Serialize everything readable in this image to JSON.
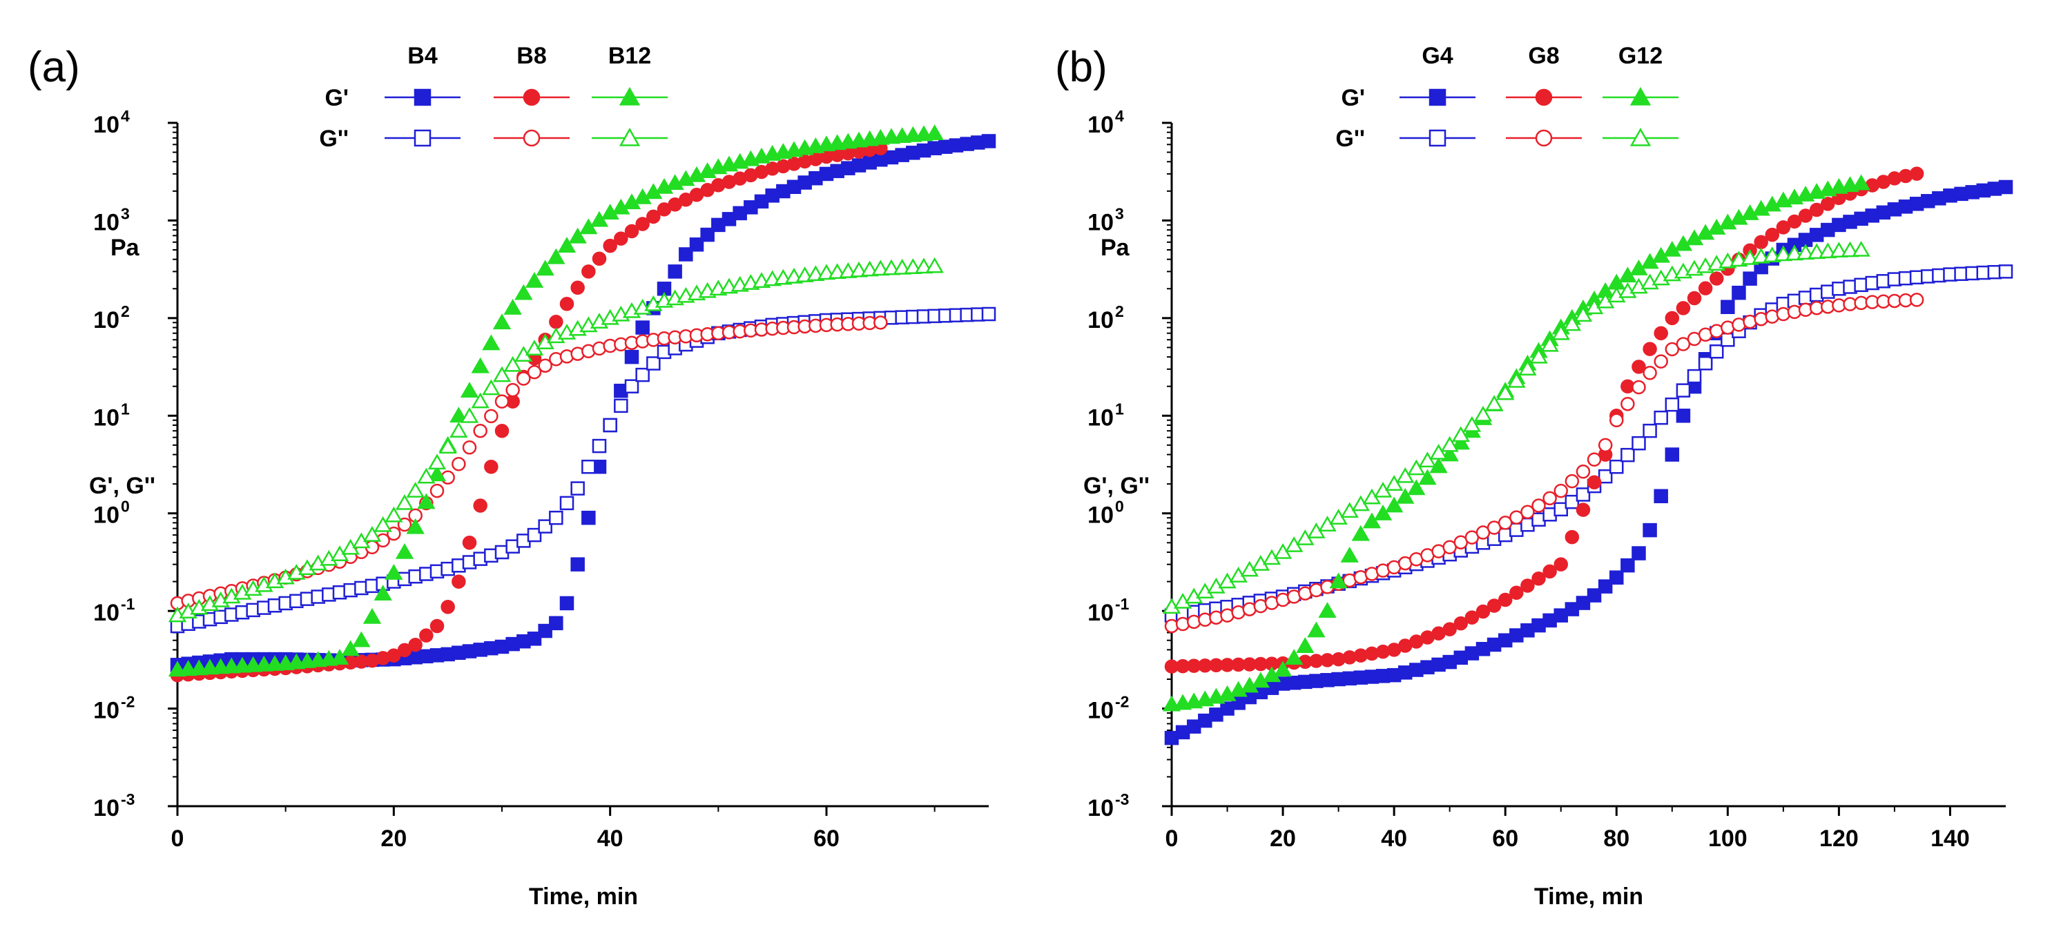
{
  "chart_data": [
    {
      "panel_label": "(a)",
      "type": "scatter",
      "xlabel": "Time, min",
      "ylabel": "G', G''",
      "yunit": "Pa",
      "xlim": [
        0,
        75
      ],
      "xticks": [
        "0",
        "20",
        "40",
        "60"
      ],
      "ylim": [
        0.001,
        10000
      ],
      "yscale": "log",
      "yticks": [
        {
          "base": "10",
          "exp": "-3"
        },
        {
          "base": "10",
          "exp": "-2"
        },
        {
          "base": "10",
          "exp": "-1"
        },
        {
          "base": "10",
          "exp": "0"
        },
        {
          "base": "10",
          "exp": "1"
        },
        {
          "base": "10",
          "exp": "2"
        },
        {
          "base": "10",
          "exp": "3"
        },
        {
          "base": "10",
          "exp": "4"
        }
      ],
      "legend": {
        "placement": "top",
        "columns": [
          "B4",
          "B8",
          "B12"
        ],
        "rows": [
          "G'",
          "G''"
        ]
      },
      "series": [
        {
          "name": "B4 G'",
          "color": "#1f1fd6",
          "marker": "square",
          "filled": true,
          "x": [
            0,
            5,
            10,
            15,
            20,
            25,
            30,
            33,
            35,
            36,
            37,
            38,
            39,
            40,
            41,
            42,
            43,
            45,
            47,
            50,
            55,
            60,
            65,
            70,
            75
          ],
          "y": [
            0.028,
            0.032,
            0.032,
            0.031,
            0.032,
            0.036,
            0.043,
            0.052,
            0.075,
            0.12,
            0.3,
            0.9,
            3,
            8,
            18,
            40,
            80,
            200,
            450,
            900,
            1800,
            3000,
            4200,
            5500,
            6500
          ]
        },
        {
          "name": "B4 G''",
          "color": "#1f1fd6",
          "marker": "square",
          "filled": false,
          "x": [
            0,
            10,
            20,
            25,
            30,
            33,
            35,
            37,
            38,
            40,
            42,
            45,
            50,
            55,
            60,
            65,
            70,
            75
          ],
          "y": [
            0.07,
            0.12,
            0.2,
            0.27,
            0.4,
            0.6,
            0.9,
            1.8,
            3,
            8,
            20,
            45,
            70,
            85,
            95,
            100,
            105,
            110
          ]
        },
        {
          "name": "B8 G'",
          "color": "#e8202a",
          "marker": "circle",
          "filled": true,
          "x": [
            0,
            5,
            10,
            15,
            18,
            20,
            22,
            24,
            25,
            26,
            27,
            28,
            29,
            30,
            31,
            32,
            34,
            36,
            38,
            40,
            45,
            50,
            55,
            60,
            65
          ],
          "y": [
            0.022,
            0.024,
            0.026,
            0.029,
            0.031,
            0.035,
            0.045,
            0.07,
            0.11,
            0.2,
            0.5,
            1.2,
            3,
            7,
            14,
            25,
            60,
            140,
            300,
            550,
            1300,
            2300,
            3400,
            4500,
            5500
          ]
        },
        {
          "name": "B8 G''",
          "color": "#e8202a",
          "marker": "circle",
          "filled": false,
          "x": [
            0,
            5,
            10,
            15,
            18,
            20,
            22,
            24,
            26,
            28,
            30,
            32,
            35,
            40,
            45,
            50,
            55,
            60,
            65
          ],
          "y": [
            0.12,
            0.16,
            0.22,
            0.32,
            0.45,
            0.62,
            0.95,
            1.7,
            3.2,
            7,
            14,
            24,
            38,
            52,
            62,
            70,
            78,
            85,
            90
          ]
        },
        {
          "name": "B12 G'",
          "color": "#22dd22",
          "marker": "triangle",
          "filled": true,
          "x": [
            0,
            5,
            10,
            15,
            17,
            19,
            21,
            23,
            24,
            25,
            26,
            27,
            28,
            29,
            30,
            32,
            34,
            36,
            38,
            40,
            45,
            50,
            55,
            60,
            65,
            70
          ],
          "y": [
            0.025,
            0.027,
            0.029,
            0.033,
            0.05,
            0.15,
            0.4,
            1.3,
            2.5,
            5,
            10,
            18,
            32,
            55,
            90,
            180,
            320,
            550,
            850,
            1200,
            2200,
            3500,
            4800,
            6000,
            7000,
            7800
          ]
        },
        {
          "name": "B12 G''",
          "color": "#22dd22",
          "marker": "triangle",
          "filled": false,
          "x": [
            0,
            5,
            10,
            15,
            18,
            20,
            22,
            24,
            26,
            28,
            30,
            32,
            35,
            40,
            45,
            50,
            55,
            60,
            65,
            70
          ],
          "y": [
            0.09,
            0.14,
            0.22,
            0.38,
            0.6,
            0.95,
            1.7,
            3.3,
            7,
            14,
            26,
            42,
            65,
            100,
            150,
            200,
            250,
            290,
            320,
            340
          ]
        }
      ]
    },
    {
      "panel_label": "(b)",
      "type": "scatter",
      "xlabel": "Time, min",
      "ylabel": "G', G''",
      "yunit": "Pa",
      "xlim": [
        0,
        150
      ],
      "xticks": [
        "0",
        "20",
        "40",
        "60",
        "80",
        "100",
        "120",
        "140"
      ],
      "ylim": [
        0.001,
        10000
      ],
      "yscale": "log",
      "yticks": [
        {
          "base": "10",
          "exp": "-3"
        },
        {
          "base": "10",
          "exp": "-2"
        },
        {
          "base": "10",
          "exp": "-1"
        },
        {
          "base": "10",
          "exp": "0"
        },
        {
          "base": "10",
          "exp": "1"
        },
        {
          "base": "10",
          "exp": "2"
        },
        {
          "base": "10",
          "exp": "3"
        },
        {
          "base": "10",
          "exp": "4"
        }
      ],
      "legend": {
        "placement": "top",
        "columns": [
          "G4",
          "G8",
          "G12"
        ],
        "rows": [
          "G'",
          "G''"
        ]
      },
      "series": [
        {
          "name": "G4 G'",
          "color": "#1f1fd6",
          "marker": "square",
          "filled": true,
          "x": [
            0,
            5,
            10,
            15,
            20,
            30,
            40,
            50,
            60,
            70,
            75,
            80,
            85,
            88,
            90,
            92,
            95,
            98,
            100,
            105,
            110,
            120,
            130,
            140,
            150
          ],
          "y": [
            0.005,
            0.007,
            0.01,
            0.014,
            0.018,
            0.02,
            0.022,
            0.03,
            0.05,
            0.09,
            0.13,
            0.22,
            0.45,
            1.5,
            4,
            10,
            28,
            70,
            130,
            300,
            500,
            900,
            1300,
            1800,
            2200
          ]
        },
        {
          "name": "G4 G''",
          "color": "#1f1fd6",
          "marker": "square",
          "filled": false,
          "x": [
            0,
            10,
            20,
            30,
            40,
            50,
            60,
            70,
            75,
            80,
            85,
            90,
            95,
            100,
            105,
            110,
            120,
            130,
            140,
            150
          ],
          "y": [
            0.09,
            0.11,
            0.14,
            0.19,
            0.26,
            0.38,
            0.6,
            1.1,
            1.7,
            3,
            6,
            13,
            30,
            60,
            100,
            140,
            200,
            250,
            280,
            300
          ]
        },
        {
          "name": "G8 G'",
          "color": "#e8202a",
          "marker": "circle",
          "filled": true,
          "x": [
            0,
            10,
            20,
            30,
            40,
            50,
            60,
            70,
            75,
            78,
            80,
            82,
            85,
            88,
            90,
            95,
            100,
            105,
            110,
            115,
            120,
            125,
            130,
            135
          ],
          "y": [
            0.027,
            0.028,
            0.029,
            0.032,
            0.04,
            0.065,
            0.13,
            0.3,
            1.5,
            4,
            10,
            20,
            40,
            70,
            100,
            180,
            320,
            550,
            850,
            1200,
            1700,
            2200,
            2700,
            3100
          ]
        },
        {
          "name": "G8 G''",
          "color": "#e8202a",
          "marker": "circle",
          "filled": false,
          "x": [
            0,
            10,
            20,
            30,
            40,
            50,
            60,
            65,
            70,
            75,
            78,
            80,
            83,
            85,
            88,
            90,
            95,
            100,
            105,
            110,
            115,
            120,
            125,
            130,
            135
          ],
          "y": [
            0.07,
            0.09,
            0.13,
            0.19,
            0.28,
            0.45,
            0.8,
            1.1,
            1.7,
            3,
            5,
            9,
            16,
            24,
            36,
            48,
            65,
            80,
            95,
            110,
            125,
            135,
            145,
            150,
            155
          ]
        },
        {
          "name": "G12 G'",
          "color": "#22dd22",
          "marker": "triangle",
          "filled": true,
          "x": [
            0,
            5,
            10,
            15,
            20,
            25,
            28,
            30,
            33,
            35,
            40,
            45,
            50,
            55,
            60,
            65,
            70,
            75,
            80,
            85,
            90,
            95,
            100,
            105,
            110,
            115,
            120,
            124
          ],
          "y": [
            0.011,
            0.012,
            0.014,
            0.018,
            0.025,
            0.05,
            0.1,
            0.2,
            0.5,
            0.75,
            1.2,
            2,
            4,
            8,
            18,
            40,
            80,
            140,
            230,
            350,
            500,
            700,
            950,
            1250,
            1600,
            1900,
            2200,
            2400
          ]
        },
        {
          "name": "G12 G''",
          "color": "#22dd22",
          "marker": "triangle",
          "filled": false,
          "x": [
            0,
            10,
            20,
            30,
            40,
            50,
            55,
            60,
            65,
            70,
            75,
            80,
            85,
            90,
            95,
            100,
            105,
            110,
            115,
            120,
            124
          ],
          "y": [
            0.11,
            0.2,
            0.4,
            0.9,
            2,
            5,
            9,
            17,
            35,
            70,
            120,
            170,
            220,
            280,
            330,
            380,
            420,
            450,
            470,
            490,
            500
          ]
        }
      ]
    }
  ]
}
